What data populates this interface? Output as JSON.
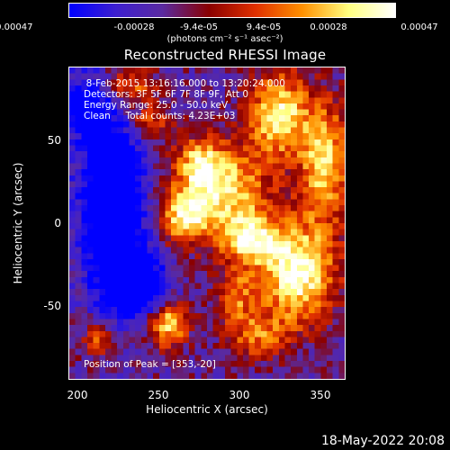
{
  "window": {
    "title": "Reconstructed RHESSI Image",
    "footer_date": "18-May-2022 20:08"
  },
  "colorbar": {
    "tick_labels": [
      "-0.00047",
      "-0.00028",
      "-9.4e-05",
      "9.4e-05",
      "0.00028",
      "0.00047"
    ],
    "units": "(photons cm⁻² s⁻¹ asec⁻²)",
    "min": -0.00047,
    "max": 0.00047,
    "colors": [
      "#0000ff",
      "#3d1fd0",
      "#5a2aa0",
      "#8a0000",
      "#e03000",
      "#ff9000",
      "#ffff80",
      "#ffffff"
    ]
  },
  "annotations": {
    "line1": "  8-Feb-2015 13:16:16.000 to 13:20:24.000",
    "line2": "Detectors: 3F 5F 6F 7F 8F 9F, Att 0",
    "line3": "Energy Range: 25.0 - 50.0 keV",
    "line4": "Clean     Total counts: 4.23E+03",
    "peak": "Position of Peak = [353,-20]"
  },
  "chart_data": {
    "type": "heatmap",
    "title": "Reconstructed RHESSI Image",
    "xlabel": "Heliocentric X (arcsec)",
    "ylabel": "Heliocentric Y (arcsec)",
    "xlim": [
      194,
      386
    ],
    "ylim": [
      -97,
      100
    ],
    "x_ticks": [
      200,
      250,
      300,
      350
    ],
    "y_ticks": [
      50,
      0,
      -50
    ],
    "peak_position": [
      353,
      -20
    ],
    "colormap": "rhessi-blue-purple-hot",
    "sources": [
      {
        "x": 353,
        "y": -30,
        "amp": 1.0,
        "sx": 18,
        "sy": 22
      },
      {
        "x": 320,
        "y": -8,
        "amp": 0.85,
        "sx": 14,
        "sy": 12
      },
      {
        "x": 300,
        "y": 25,
        "amp": 0.8,
        "sx": 22,
        "sy": 18
      },
      {
        "x": 275,
        "y": 5,
        "amp": 0.75,
        "sx": 14,
        "sy": 12
      },
      {
        "x": 340,
        "y": 70,
        "amp": 0.9,
        "sx": 14,
        "sy": 18
      },
      {
        "x": 372,
        "y": 40,
        "amp": 0.8,
        "sx": 12,
        "sy": 26
      },
      {
        "x": 262,
        "y": -62,
        "amp": 0.85,
        "sx": 10,
        "sy": 10
      },
      {
        "x": 325,
        "y": -70,
        "amp": 0.5,
        "sx": 14,
        "sy": 10
      },
      {
        "x": 215,
        "y": -72,
        "amp": 0.55,
        "sx": 8,
        "sy": 8
      },
      {
        "x": 236,
        "y": 88,
        "amp": 0.6,
        "sx": 12,
        "sy": 8
      },
      {
        "x": 250,
        "y": 65,
        "amp": 0.5,
        "sx": 10,
        "sy": 8
      },
      {
        "x": 285,
        "y": 40,
        "amp": 0.55,
        "sx": 10,
        "sy": 10
      },
      {
        "x": 310,
        "y": -45,
        "amp": 0.5,
        "sx": 10,
        "sy": 12
      }
    ],
    "negative_regions": [
      {
        "x": 225,
        "y": 10,
        "amp": -1.0,
        "sx": 16,
        "sy": 40
      },
      {
        "x": 205,
        "y": 75,
        "amp": -0.6,
        "sx": 12,
        "sy": 14
      },
      {
        "x": 245,
        "y": -40,
        "amp": -0.7,
        "sx": 14,
        "sy": 14
      }
    ]
  }
}
